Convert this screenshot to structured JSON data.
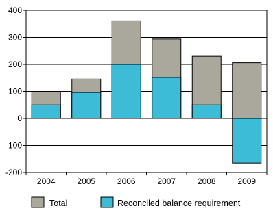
{
  "chart_data": {
    "type": "bar",
    "title": "",
    "xlabel": "",
    "ylabel": "",
    "categories": [
      "2004",
      "2005",
      "2006",
      "2007",
      "2008",
      "2009"
    ],
    "series": [
      {
        "name": "Total",
        "values": [
          98,
          146,
          361,
          294,
          230,
          206
        ],
        "color": "#aaa89c"
      },
      {
        "name": "Reconciled balance requirement",
        "values": [
          50,
          96,
          200,
          152,
          50,
          -165
        ],
        "color": "#3dbcd8"
      }
    ],
    "ylim": [
      -200,
      400
    ],
    "yticks": [
      -200,
      -100,
      0,
      100,
      200,
      300,
      400
    ],
    "grid": true,
    "legend_position": "bottom"
  }
}
